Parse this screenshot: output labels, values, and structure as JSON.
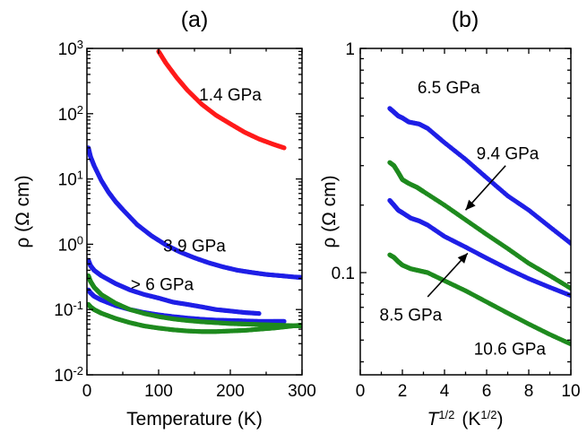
{
  "colors": {
    "red": "#ff1a1a",
    "blue": "#1f1fe6",
    "green": "#1e8a1e",
    "axis": "#000000"
  },
  "chart_data": [
    {
      "type": "scatter",
      "panel_label": "(a)",
      "xlabel": "Temperature (K)",
      "ylabel": "ρ (Ω cm)",
      "xlim": [
        0,
        300
      ],
      "ylim": [
        0.01,
        1000
      ],
      "yscale": "log",
      "xticks": [
        0,
        100,
        200,
        300
      ],
      "xtick_labels": [
        "0",
        "100",
        "200",
        "300"
      ],
      "yticks": [
        0.01,
        0.1,
        1,
        10,
        100,
        1000
      ],
      "ytick_labels": [
        {
          "base": "10",
          "exp": "-2"
        },
        {
          "base": "10",
          "exp": "-1"
        },
        {
          "base": "10",
          "exp": "0"
        },
        {
          "base": "10",
          "exp": "1"
        },
        {
          "base": "10",
          "exp": "2"
        },
        {
          "base": "10",
          "exp": "3"
        }
      ],
      "series": [
        {
          "color": "red",
          "x": [
            100,
            110,
            125,
            140,
            160,
            180,
            200,
            220,
            240,
            260,
            275
          ],
          "y": [
            900,
            600,
            360,
            230,
            140,
            95,
            70,
            52,
            41,
            34,
            30
          ]
        },
        {
          "color": "blue",
          "x": [
            2,
            5,
            10,
            20,
            30,
            40,
            50,
            70,
            90,
            110,
            130,
            150,
            170,
            190,
            210,
            230,
            250,
            270,
            290,
            300
          ],
          "y": [
            30,
            22,
            16,
            9.5,
            6.3,
            4.5,
            3.4,
            2.0,
            1.35,
            0.98,
            0.76,
            0.62,
            0.52,
            0.45,
            0.4,
            0.37,
            0.345,
            0.33,
            0.315,
            0.31
          ]
        },
        {
          "color": "blue",
          "x": [
            2,
            5,
            10,
            20,
            40,
            60,
            80,
            100,
            120,
            140,
            160,
            180,
            200,
            220,
            240
          ],
          "y": [
            0.57,
            0.47,
            0.4,
            0.33,
            0.25,
            0.2,
            0.17,
            0.15,
            0.13,
            0.12,
            0.11,
            0.1,
            0.095,
            0.09,
            0.087
          ]
        },
        {
          "color": "blue",
          "x": [
            2,
            5,
            10,
            20,
            40,
            60,
            80,
            100,
            120,
            140,
            160,
            180,
            200,
            220,
            240,
            260,
            275
          ],
          "y": [
            0.2,
            0.18,
            0.16,
            0.14,
            0.115,
            0.1,
            0.09,
            0.083,
            0.078,
            0.074,
            0.071,
            0.069,
            0.068,
            0.067,
            0.066,
            0.066,
            0.066
          ]
        },
        {
          "color": "green",
          "x": [
            2,
            5,
            10,
            20,
            40,
            60,
            80,
            100,
            120,
            140,
            160,
            180,
            200,
            220,
            240,
            260,
            280,
            300
          ],
          "y": [
            0.33,
            0.27,
            0.22,
            0.17,
            0.125,
            0.1,
            0.087,
            0.078,
            0.072,
            0.068,
            0.065,
            0.063,
            0.061,
            0.06,
            0.059,
            0.058,
            0.057,
            0.056
          ]
        },
        {
          "color": "green",
          "x": [
            2,
            5,
            10,
            20,
            40,
            60,
            80,
            100,
            120,
            140,
            160,
            180,
            200,
            220,
            240,
            260,
            280,
            300
          ],
          "y": [
            0.12,
            0.11,
            0.1,
            0.088,
            0.073,
            0.063,
            0.056,
            0.052,
            0.049,
            0.047,
            0.046,
            0.046,
            0.047,
            0.048,
            0.05,
            0.052,
            0.055,
            0.058
          ]
        }
      ],
      "annotations": [
        {
          "text": "1.4 GPa",
          "x": 200,
          "y": 160
        },
        {
          "text": "3.9 GPa",
          "x": 150,
          "y": 0.78
        },
        {
          "text": "> 6 GPa",
          "x": 105,
          "y": 0.2
        }
      ]
    },
    {
      "type": "scatter",
      "panel_label": "(b)",
      "xlabel": {
        "base": "T",
        "exp": "1/2",
        "unit_base": "(K",
        "unit_exp": "1/2",
        "unit_close": ")"
      },
      "ylabel": "ρ (Ω cm)",
      "xlim": [
        0,
        10
      ],
      "ylim": [
        0.035,
        1
      ],
      "yscale": "log",
      "xticks": [
        0,
        2,
        4,
        6,
        8,
        10
      ],
      "xtick_labels": [
        "0",
        "2",
        "4",
        "6",
        "8",
        "10"
      ],
      "yticks": [
        0.1,
        1
      ],
      "ytick_labels": [
        "0.1",
        "1"
      ],
      "series": [
        {
          "color": "blue",
          "x": [
            1.4,
            1.6,
            1.8,
            2.0,
            2.3,
            2.8,
            3.2,
            4,
            5,
            6,
            7,
            8,
            9,
            10
          ],
          "y": [
            0.54,
            0.52,
            0.5,
            0.49,
            0.47,
            0.46,
            0.44,
            0.38,
            0.32,
            0.265,
            0.22,
            0.19,
            0.16,
            0.135
          ]
        },
        {
          "color": "green",
          "x": [
            1.4,
            1.6,
            1.8,
            2.0,
            2.3,
            2.7,
            3.0,
            4,
            5,
            6,
            7,
            8,
            9,
            10
          ],
          "y": [
            0.31,
            0.3,
            0.28,
            0.26,
            0.25,
            0.24,
            0.23,
            0.2,
            0.172,
            0.148,
            0.128,
            0.11,
            0.097,
            0.085
          ]
        },
        {
          "color": "blue",
          "x": [
            1.4,
            1.6,
            1.8,
            2.0,
            2.4,
            2.8,
            3.2,
            4,
            5,
            6,
            7,
            8,
            9,
            10
          ],
          "y": [
            0.21,
            0.2,
            0.19,
            0.185,
            0.175,
            0.17,
            0.163,
            0.145,
            0.13,
            0.116,
            0.104,
            0.094,
            0.086,
            0.079
          ]
        },
        {
          "color": "green",
          "x": [
            1.4,
            1.6,
            1.8,
            2.0,
            2.4,
            2.8,
            3.2,
            4,
            5,
            6,
            7,
            8,
            9,
            10
          ],
          "y": [
            0.12,
            0.117,
            0.112,
            0.108,
            0.104,
            0.102,
            0.1,
            0.092,
            0.083,
            0.074,
            0.066,
            0.059,
            0.053,
            0.048
          ]
        }
      ],
      "annotations": [
        {
          "text": "6.5 GPa",
          "x": 4.2,
          "y": 0.63
        },
        {
          "text": "9.4 GPa",
          "x": 7.0,
          "y": 0.32
        },
        {
          "text": "8.5 GPa",
          "x": 2.4,
          "y": 0.061
        },
        {
          "text": "10.6 GPa",
          "x": 7.1,
          "y": 0.043
        }
      ],
      "arrows": [
        {
          "from": [
            6.9,
            0.3
          ],
          "to": [
            5.0,
            0.19
          ]
        },
        {
          "from": [
            3.2,
            0.078
          ],
          "to": [
            5.1,
            0.122
          ]
        }
      ]
    }
  ]
}
